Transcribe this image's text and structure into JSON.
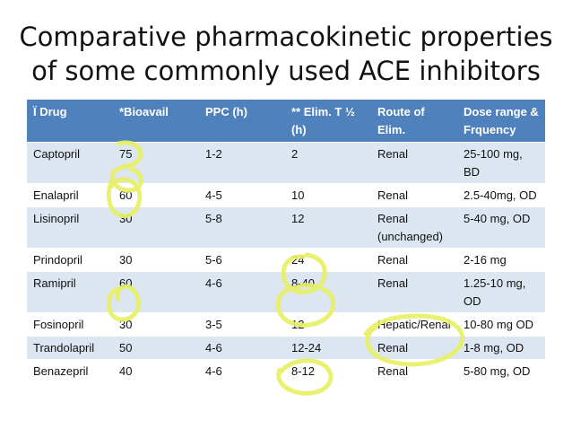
{
  "title": {
    "line1": "Comparative pharmacokinetic properties",
    "line2": "of some commonly used ACE inhibitors"
  },
  "table": {
    "headers": [
      "Ï Drug",
      "*Bioavail",
      "PPC (h)",
      "** Elim. T ½ (h)",
      "Route of Elim.",
      "Dose range & Frquency"
    ],
    "rows": [
      [
        "Captopril",
        "75",
        "1-2",
        "2",
        "Renal",
        "25-100 mg, BD"
      ],
      [
        "Enalapril",
        "60",
        "4-5",
        "10",
        "Renal",
        "2.5-40mg, OD"
      ],
      [
        "Lisinopril",
        "30",
        "5-8",
        "12",
        "Renal (unchanged)",
        "5-40 mg, OD"
      ],
      [
        "Prindopril",
        "30",
        "5-6",
        "24",
        "Renal",
        "2-16 mg"
      ],
      [
        "Ramipril",
        "60",
        "4-6",
        "8-40",
        "Renal",
        "1.25-10 mg, OD"
      ],
      [
        "Fosinopril",
        "30",
        "3-5",
        "12",
        "Hepatic/Renal",
        "10-80 mg OD"
      ],
      [
        "Trandolapril",
        "50",
        "4-6",
        "12-24",
        "Renal",
        "1-8 mg, OD"
      ],
      [
        "Benazepril",
        "40",
        "4-6",
        "8-12",
        "Renal",
        "5-80 mg, OD"
      ]
    ]
  },
  "colors": {
    "header_bg": "#4f81bd",
    "band_row_bg": "#dce6f1",
    "highlighter": "#e8f062"
  }
}
